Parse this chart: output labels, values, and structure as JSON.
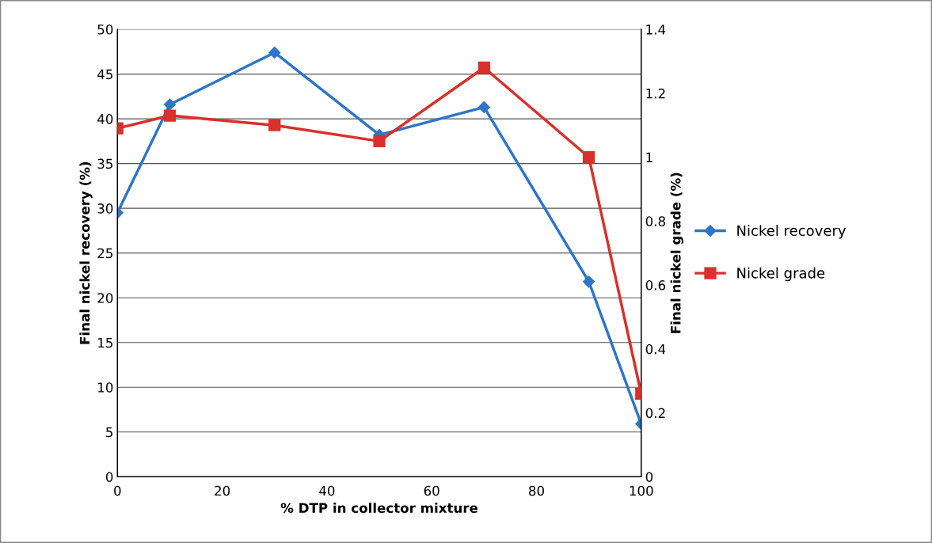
{
  "chart_data": {
    "type": "line",
    "xlabel": "% DTP in collector mixture",
    "ylabel": "Final nickel recovery (%)",
    "y2label": "Final nickel grade (%)",
    "x": [
      0,
      10,
      30,
      50,
      70,
      90,
      100
    ],
    "series": [
      {
        "name": "Nickel recovery",
        "color": "#2e75c8",
        "marker": "diamond",
        "values": [
          29.5,
          41.6,
          47.4,
          38.2,
          41.3,
          21.8,
          5.9
        ]
      },
      {
        "name": "Nickel grade",
        "color": "#d9302b",
        "marker": "square",
        "axis": "y2",
        "values": [
          1.09,
          1.13,
          1.1,
          1.05,
          1.28,
          1.0,
          0.26
        ]
      }
    ],
    "xlim": [
      0,
      100
    ],
    "xticks": [
      0,
      20,
      40,
      60,
      80,
      100
    ],
    "ylim": [
      0,
      50
    ],
    "yticks": [
      0,
      5,
      10,
      15,
      20,
      25,
      30,
      35,
      40,
      45,
      50
    ],
    "y2lim": [
      0,
      1.4
    ],
    "y2ticks": [
      0,
      0.2,
      0.4,
      0.6,
      0.8,
      1,
      1.2,
      1.4
    ],
    "grid": "y",
    "legend": "right",
    "line_style": "solid"
  }
}
